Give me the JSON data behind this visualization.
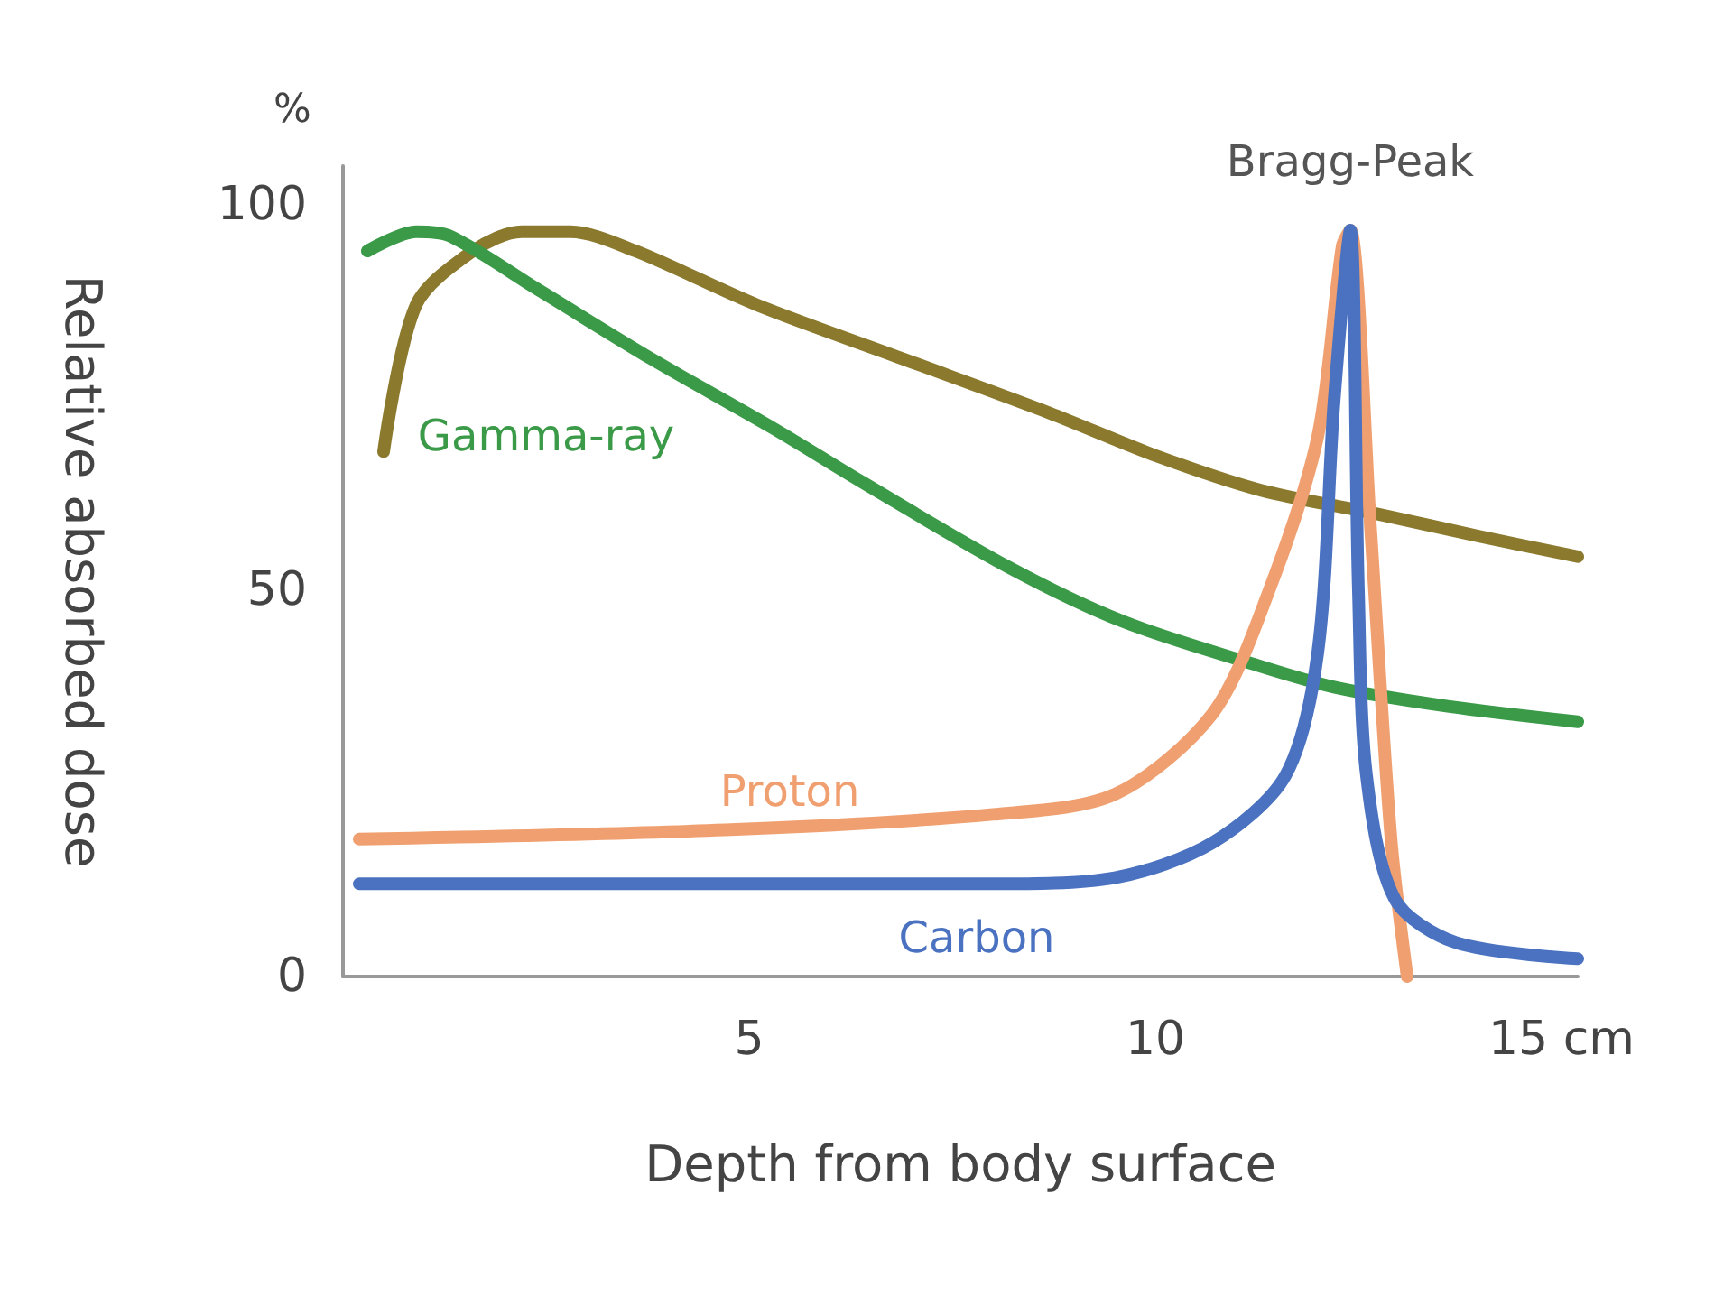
{
  "chart_data": {
    "type": "line",
    "xlabel": "Depth from body surface",
    "ylabel": "Relative absorbed dose",
    "xlim": [
      0,
      15.2
    ],
    "ylim": [
      0,
      105
    ],
    "xticks": [
      5,
      10,
      {
        "value": 15,
        "label": "15 cm"
      }
    ],
    "yticks": [
      0,
      50,
      100
    ],
    "grid": false,
    "legend": false,
    "marker": "none",
    "line_style": "solid",
    "annotations": [
      "%",
      {
        "text": "Bragg-Peak",
        "x": 12.4,
        "y": 96.7
      }
    ],
    "series": [
      {
        "color": "#8b7a2e",
        "x": [
          0.5,
          0.9,
          1.6,
          2.2,
          2.8,
          3.6,
          5.1,
          6.9,
          8.7,
          10,
          11.3,
          12.7,
          14,
          15.2
        ],
        "values": [
          68,
          87,
          94,
          96.5,
          96.5,
          94,
          87,
          80,
          73,
          67.5,
          63,
          60,
          57,
          54.4
        ]
      },
      {
        "name": "Gamma-ray",
        "color": "#3a9a48",
        "x": [
          0.3,
          0.9,
          1.3,
          2.4,
          3.8,
          5.3,
          6.4,
          8.2,
          9.6,
          11.2,
          12.2,
          13.6,
          15.2
        ],
        "values": [
          94,
          96.5,
          96,
          89,
          80,
          71,
          64,
          53,
          46,
          40.5,
          37.5,
          35,
          33
        ]
      },
      {
        "name": "Proton",
        "color": "#f0a070",
        "x": [
          0.2,
          4.7,
          8,
          9.5,
          10.7,
          11.4,
          12,
          12.3,
          12.4,
          12.65,
          12.9,
          13.1
        ],
        "values": [
          17.8,
          19,
          21,
          23.6,
          34,
          50,
          70,
          94.6,
          96.7,
          58,
          18,
          0
        ]
      },
      {
        "name": "Carbon",
        "color": "#4a72c0",
        "x": [
          0.2,
          4.7,
          8,
          9.5,
          10.7,
          11.6,
          12,
          12.2,
          12.4,
          12.5,
          12.6,
          12.95,
          13.7,
          15.2
        ],
        "values": [
          12,
          12,
          12,
          12.8,
          17.3,
          26,
          42,
          74.5,
          96.7,
          50,
          26,
          10,
          4.4,
          2.3
        ]
      }
    ]
  }
}
